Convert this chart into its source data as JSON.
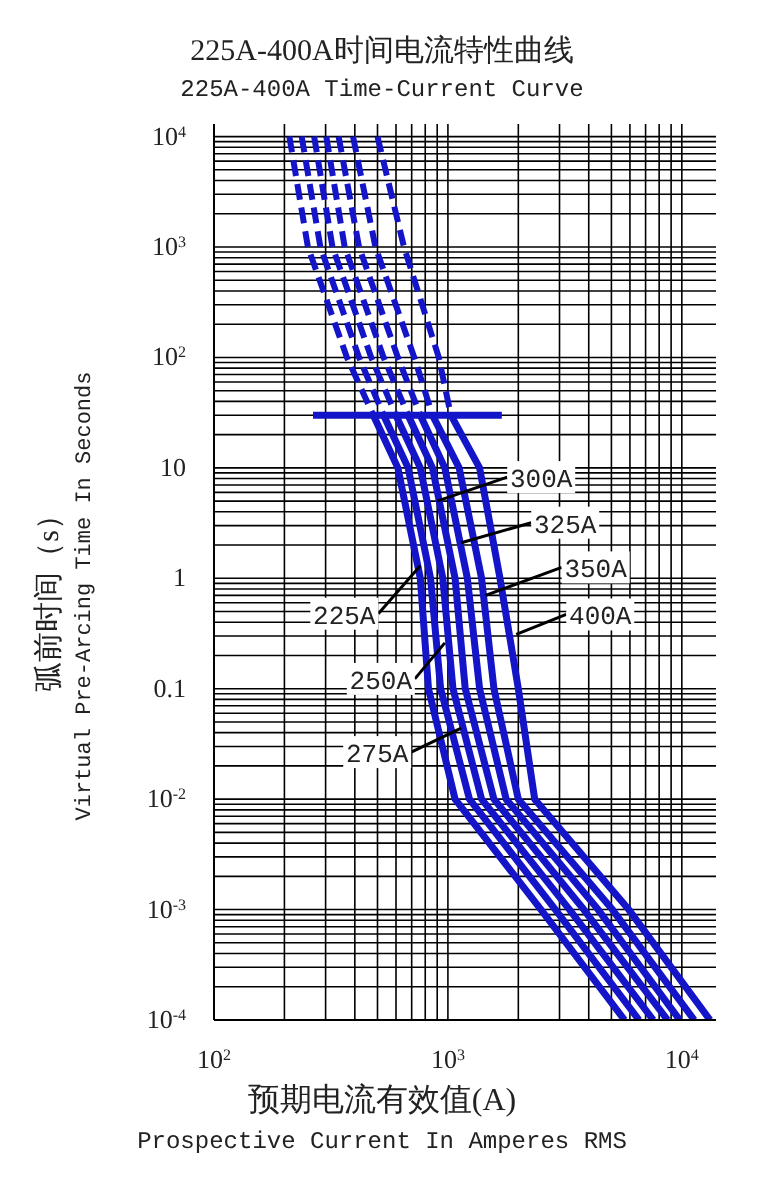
{
  "chart_data": {
    "type": "line",
    "title": "225A-400A时间电流特性曲线",
    "subtitle": "225A-400A Time-Current Curve",
    "xlabel": "预期电流有效值(A)\nProspective Current In Amperes RMS",
    "ylabel": "弧前时间（s）\nVirtual Pre-Arcing Time In Seconds",
    "log": "xy",
    "grid": true,
    "marker": "none",
    "xlim": [
      100,
      14000
    ],
    "xticks": [
      {
        "value": 100,
        "label": "10$^{2}$"
      },
      {
        "value": 1000,
        "label": "10$^{3}$"
      },
      {
        "value": 10000,
        "label": "10$^{4}$"
      }
    ],
    "ylim": [
      0.0001,
      13000
    ],
    "yticks": [
      {
        "value": 10000,
        "label": "10$^{4}$"
      },
      {
        "value": 1000,
        "label": "10$^{3}$"
      },
      {
        "value": 100,
        "label": "10$^{2}$"
      },
      10,
      1,
      0.1,
      {
        "value": 0.01,
        "label": "10$^{-2}$"
      },
      {
        "value": 0.001,
        "label": "10$^{-3}$"
      },
      {
        "value": 0.0001,
        "label": "10$^{-4}$"
      }
    ],
    "series": [
      {
        "color": "#1414c8",
        "line_style": "dashed",
        "x": [
          210,
          252,
          370,
          480
        ],
        "values": [
          10000,
          1000,
          100,
          30
        ]
      },
      {
        "color": "#1414c8",
        "line_style": "dashed",
        "x": [
          237,
          285,
          417,
          531
        ],
        "values": [
          10000,
          1000,
          100,
          30
        ]
      },
      {
        "color": "#1414c8",
        "line_style": "dashed",
        "x": [
          268,
          321,
          470,
          599
        ],
        "values": [
          10000,
          1000,
          100,
          30
        ]
      },
      {
        "color": "#1414c8",
        "line_style": "dashed",
        "x": [
          302,
          362,
          531,
          676
        ],
        "values": [
          10000,
          1000,
          100,
          30
        ]
      },
      {
        "color": "#1414c8",
        "line_style": "dashed",
        "x": [
          341,
          417,
          611,
          762
        ],
        "values": [
          10000,
          1000,
          100,
          30
        ]
      },
      {
        "color": "#1414c8",
        "line_style": "dashed",
        "x": [
          393,
          490,
          718,
          859
        ],
        "values": [
          10000,
          1000,
          100,
          30
        ]
      },
      {
        "color": "#1414c8",
        "line_style": "dashed",
        "x": [
          500,
          649,
          914,
          1030
        ],
        "values": [
          10000,
          1000,
          100,
          30
        ]
      },
      {
        "color": "#1414c8",
        "line_style": "solid",
        "x": [
          480,
          611,
          762,
          826,
          1073,
          2500,
          5690
        ],
        "values": [
          30,
          10,
          1,
          0.1,
          0.01,
          0.001,
          0.0001
        ]
      },
      {
        "color": "#1414c8",
        "line_style": "solid",
        "x": [
          531,
          676,
          843,
          931,
          1236,
          2880,
          6560
        ],
        "values": [
          30,
          10,
          1,
          0.1,
          0.01,
          0.001,
          0.0001
        ]
      },
      {
        "color": "#1414c8",
        "line_style": "solid",
        "x": [
          599,
          762,
          951,
          1051,
          1393,
          3310,
          7550
        ],
        "values": [
          30,
          10,
          1,
          0.1,
          0.01,
          0.001,
          0.0001
        ]
      },
      {
        "color": "#1414c8",
        "line_style": "solid",
        "x": [
          676,
          859,
          1073,
          1186,
          1573,
          3810,
          8690
        ],
        "values": [
          30,
          10,
          1,
          0.1,
          0.01,
          0.001,
          0.0001
        ]
      },
      {
        "color": "#1414c8",
        "line_style": "solid",
        "x": [
          762,
          970,
          1211,
          1366,
          1774,
          4385,
          9800
        ],
        "values": [
          30,
          10,
          1,
          0.1,
          0.01,
          0.001,
          0.0001
        ]
      },
      {
        "color": "#1414c8",
        "line_style": "solid",
        "x": [
          859,
          1117,
          1393,
          1573,
          2000,
          5050,
          11300
        ],
        "values": [
          30,
          10,
          1,
          0.1,
          0.01,
          0.001,
          0.0001
        ]
      },
      {
        "color": "#1414c8",
        "line_style": "solid",
        "x": [
          1030,
          1366,
          1670,
          2000,
          2350,
          5930,
          13200
        ],
        "values": [
          30,
          10,
          1,
          0.1,
          0.01,
          0.001,
          0.0001
        ]
      },
      {
        "color": "#1414c8",
        "line_style": "solid",
        "x": [
          265,
          1700
        ],
        "values": [
          30,
          30
        ]
      }
    ],
    "annotations": [
      {
        "text": "300A",
        "x": 900,
        "y": 5
      },
      {
        "text": "325A",
        "x": 1140,
        "y": 2.1
      },
      {
        "text": "350A",
        "x": 1450,
        "y": 0.7
      },
      {
        "text": "400A",
        "x": 1960,
        "y": 0.31
      },
      {
        "text": "225A",
        "x": 762,
        "y": 1.3
      },
      {
        "text": "250A",
        "x": 970,
        "y": 0.26
      },
      {
        "text": "275A",
        "x": 1140,
        "y": 0.044
      }
    ]
  }
}
